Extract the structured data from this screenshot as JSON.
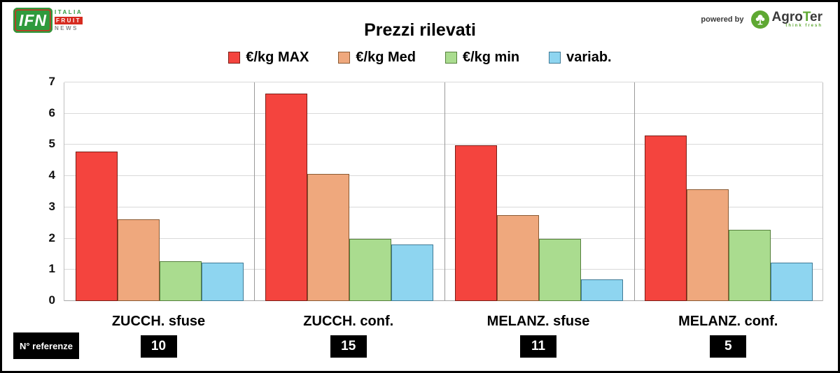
{
  "header": {
    "title": "Prezzi rilevati",
    "ifn_logo": {
      "text": "IFN",
      "line1": "ITALIA",
      "line2": "FRUIT",
      "line3": "NEWS"
    },
    "powered_by": "powered by",
    "agroter": {
      "agro": "Agro",
      "t": "T",
      "er": "er",
      "tagline": "think fresh"
    }
  },
  "legend": [
    {
      "label": "€/kg MAX",
      "color": "#f4443e",
      "border": "#7c1d16"
    },
    {
      "label": "€/kg Med",
      "color": "#efa87d",
      "border": "#8a5a33"
    },
    {
      "label": "€/kg  min",
      "color": "#aadc8f",
      "border": "#55803c"
    },
    {
      "label": "variab.",
      "color": "#8ed5f0",
      "border": "#3f7a96"
    }
  ],
  "chart_data": {
    "type": "bar",
    "title": "Prezzi rilevati",
    "categories": [
      "ZUCCH. sfuse",
      "ZUCCH. conf.",
      "MELANZ. sfuse",
      "MELANZ. conf."
    ],
    "n_referenze": [
      "10",
      "15",
      "11",
      "5"
    ],
    "series": [
      {
        "name": "€/kg MAX",
        "color": "#f4443e",
        "border": "#7c1d16",
        "values": [
          4.79,
          6.64,
          4.99,
          5.3
        ]
      },
      {
        "name": "€/kg Med",
        "color": "#efa87d",
        "border": "#8a5a33",
        "values": [
          2.62,
          4.08,
          2.76,
          3.58
        ]
      },
      {
        "name": "€/kg min",
        "color": "#aadc8f",
        "border": "#55803c",
        "values": [
          1.28,
          1.99,
          1.99,
          2.28
        ]
      },
      {
        "name": "variab.",
        "color": "#8ed5f0",
        "border": "#3f7a96",
        "values": [
          1.23,
          1.81,
          0.69,
          1.23
        ]
      }
    ],
    "ylim": [
      0,
      7
    ],
    "yticks": [
      0,
      1,
      2,
      3,
      4,
      5,
      6,
      7
    ],
    "grid": true,
    "legend_position": "top",
    "xlabel": "",
    "ylabel": ""
  },
  "footer": {
    "n_referenze_label": "N° referenze"
  }
}
